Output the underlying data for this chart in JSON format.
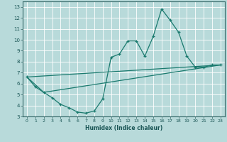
{
  "background_color": "#b8dada",
  "grid_color": "#ffffff",
  "line_color": "#1a7a6e",
  "xlabel": "Humidex (Indice chaleur)",
  "xlim": [
    -0.5,
    23.5
  ],
  "ylim": [
    3,
    13.5
  ],
  "xticks": [
    0,
    1,
    2,
    3,
    4,
    5,
    6,
    7,
    8,
    9,
    10,
    11,
    12,
    13,
    14,
    15,
    16,
    17,
    18,
    19,
    20,
    21,
    22,
    23
  ],
  "yticks": [
    3,
    4,
    5,
    6,
    7,
    8,
    9,
    10,
    11,
    12,
    13
  ],
  "series": [
    {
      "x": [
        0,
        1,
        2,
        3,
        4,
        5,
        6,
        7,
        8,
        9,
        10,
        11,
        12,
        13,
        14,
        15,
        16,
        17,
        18,
        19,
        20,
        21,
        22,
        23
      ],
      "y": [
        6.6,
        5.7,
        5.2,
        4.7,
        4.1,
        3.8,
        3.4,
        3.3,
        3.5,
        4.6,
        8.4,
        8.7,
        9.9,
        9.9,
        8.5,
        10.3,
        12.8,
        11.8,
        10.7,
        8.5,
        7.5,
        7.5,
        7.7,
        7.7
      ]
    },
    {
      "x": [
        0,
        2,
        23
      ],
      "y": [
        6.6,
        5.2,
        7.7
      ]
    },
    {
      "x": [
        0,
        23
      ],
      "y": [
        6.6,
        7.7
      ]
    }
  ]
}
